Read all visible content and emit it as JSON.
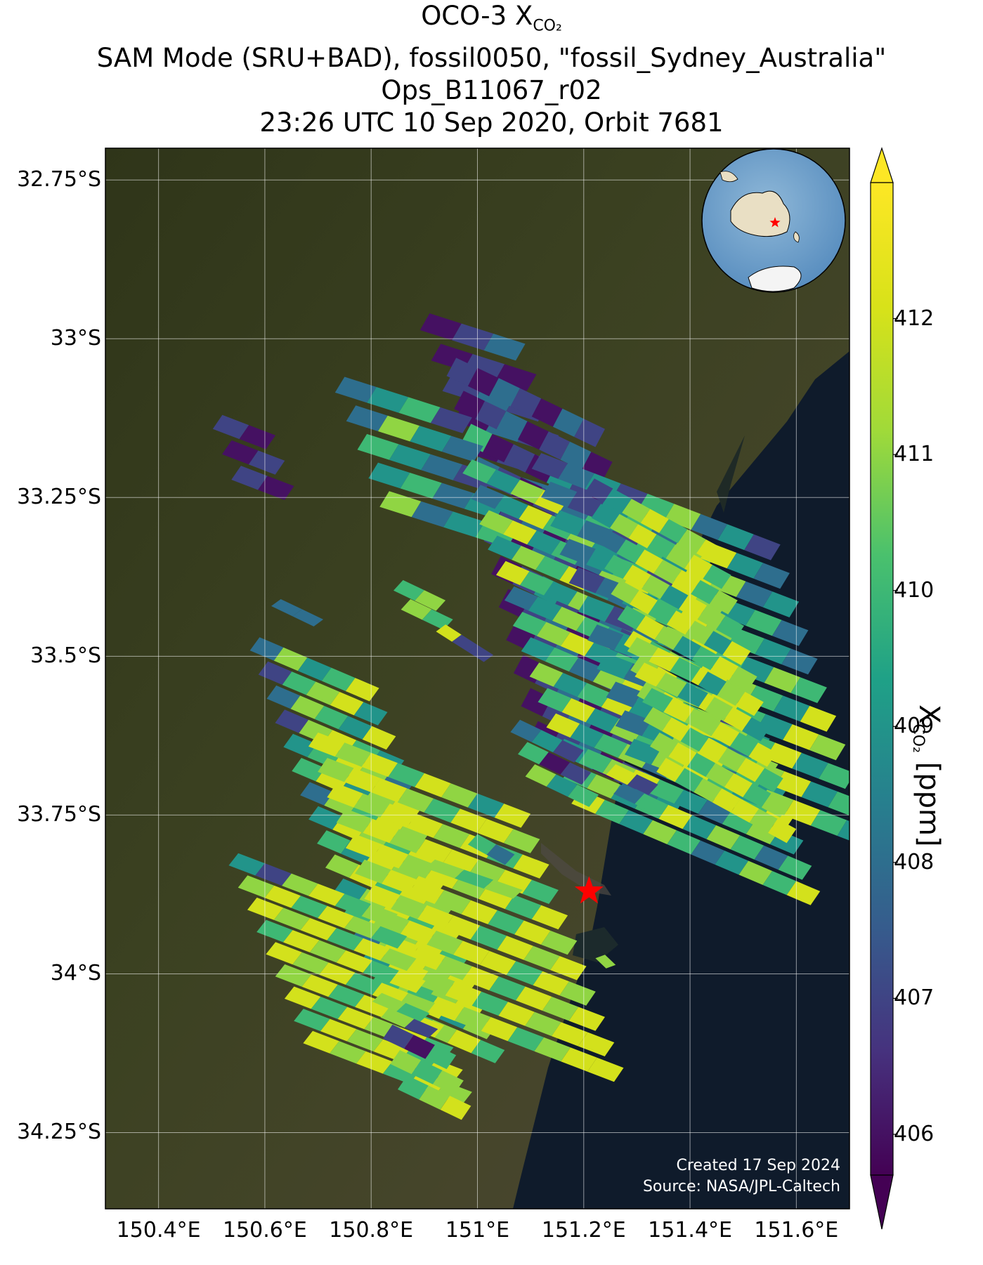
{
  "title": {
    "line1_main": "OCO-3 X",
    "line1_sub": "CO₂",
    "line2": "SAM Mode (SRU+BAD), fossil0050, \"fossil_Sydney_Australia\"",
    "line3": "Ops_B11067_r02",
    "line4": "23:26 UTC 10 Sep 2020, Orbit 7681"
  },
  "map": {
    "lat_labels": [
      "32.75°S",
      "33°S",
      "33.25°S",
      "33.5°S",
      "33.75°S",
      "34°S",
      "34.25°S"
    ],
    "lon_labels": [
      "150.4°E",
      "150.6°E",
      "150.8°E",
      "151°E",
      "151.2°E",
      "151.4°E",
      "151.6°E"
    ],
    "target_marker": {
      "lat": -33.87,
      "lon": 151.21,
      "symbol": "red-star"
    },
    "inset": {
      "description_icon": "globe-inset-icon",
      "marker": "red-star"
    },
    "colors": {
      "land": "#3a3f22",
      "ocean": "#0f1b2b",
      "grid": "#ffffff",
      "target": "#ff0000"
    },
    "credit_line1": "Created 17 Sep 2024",
    "credit_line2": "Source: NASA/JPL-Caltech"
  },
  "colorbar": {
    "ticks": [
      "406",
      "407",
      "408",
      "409",
      "410",
      "411",
      "412"
    ],
    "label_main": "X",
    "label_sub": "CO₂",
    "label_unit": " [ppm]",
    "colormap": "viridis",
    "range": [
      405.7,
      413
    ]
  },
  "chart_data": {
    "type": "heatmap",
    "variable": "XCO2 [ppm]",
    "colormap": "viridis",
    "crange": [
      405.7,
      413
    ],
    "extent": {
      "lon": [
        150.3,
        151.7
      ],
      "lat": [
        -34.37,
        -32.7
      ]
    },
    "swaths": [
      {
        "lon0": 150.91,
        "lat0": -32.96,
        "dlon": 0.06,
        "dlat": -0.048,
        "across_lon": 0.018,
        "across_lat": 0.016,
        "rows": 8,
        "cols": 3,
        "vals": [
          406,
          407,
          408,
          406,
          407,
          406,
          407,
          408,
          407,
          406,
          408,
          407,
          406,
          407,
          408,
          407,
          408,
          406,
          407,
          406,
          407,
          406,
          407,
          408
        ]
      },
      {
        "lon0": 150.96,
        "lat0": -33.03,
        "dlon": 0.04,
        "dlat": -0.052,
        "across_lon": 0.018,
        "across_lat": 0.016,
        "rows": 12,
        "cols": 7,
        "vals": [
          407,
          406,
          408,
          407,
          406,
          408,
          407,
          406,
          407,
          408,
          406,
          407,
          408,
          406,
          410,
          406,
          407,
          406,
          409,
          407,
          406,
          408,
          407,
          406,
          407,
          408,
          406,
          407,
          406,
          407,
          408,
          406,
          407,
          409,
          408,
          407,
          406,
          408,
          407,
          406,
          407,
          408,
          406,
          407,
          409,
          407,
          406,
          408,
          407,
          406,
          407,
          408,
          406,
          412,
          407,
          409,
          406,
          407,
          408,
          406,
          407,
          408,
          409,
          406,
          407,
          408,
          406,
          407,
          409,
          408,
          406,
          407,
          408,
          406,
          407,
          408,
          409,
          406,
          407,
          408,
          406,
          407,
          408,
          409
        ]
      },
      {
        "lon0": 150.52,
        "lat0": -33.12,
        "dlon": 0.05,
        "dlat": -0.04,
        "across_lon": 0.018,
        "across_lat": 0.016,
        "rows": 3,
        "cols": 2,
        "vals": [
          407,
          406,
          406,
          407,
          407,
          406
        ]
      },
      {
        "lon0": 150.75,
        "lat0": -33.06,
        "dlon": 0.06,
        "dlat": -0.045,
        "across_lon": 0.018,
        "across_lat": 0.016,
        "rows": 5,
        "cols": 4,
        "vals": [
          408,
          409,
          410,
          407,
          408,
          411,
          409,
          408,
          410,
          409,
          408,
          407,
          409,
          410,
          408,
          409,
          411,
          408,
          409,
          410
        ]
      },
      {
        "lon0": 150.99,
        "lat0": -33.19,
        "dlon": 0.045,
        "dlat": -0.04,
        "across_lon": 0.018,
        "across_lat": 0.016,
        "rows": 14,
        "cols": 10,
        "vals": [
          410,
          409,
          411,
          412,
          408,
          410,
          409,
          411,
          407,
          410,
          408,
          409,
          412,
          410,
          411,
          409,
          408,
          410,
          411,
          407,
          411,
          412,
          409,
          410,
          408,
          411,
          412,
          410,
          409,
          408,
          409,
          411,
          410,
          412,
          409,
          408,
          411,
          410,
          407,
          409,
          412,
          410,
          409,
          411,
          412,
          410,
          409,
          408,
          411,
          410,
          408,
          409,
          411,
          410,
          409,
          412,
          410,
          411,
          409,
          408,
          410,
          411,
          412,
          409,
          410,
          411,
          408,
          409,
          410,
          412,
          409,
          410,
          408,
          411,
          412,
          409,
          410,
          411,
          407,
          409,
          411,
          409,
          410,
          412,
          409,
          411,
          410,
          409,
          408,
          411,
          410,
          412,
          409,
          411,
          410,
          409,
          411,
          408,
          410,
          409,
          412,
          409,
          410,
          411,
          408,
          410,
          409,
          411,
          410,
          412,
          409,
          410,
          411,
          412,
          410,
          409,
          408,
          410,
          411,
          409,
          410,
          411,
          409,
          410,
          412,
          409,
          411,
          410,
          408,
          410,
          412,
          410,
          409,
          411,
          410,
          408,
          409,
          411,
          410,
          412
        ]
      },
      {
        "lon0": 151.12,
        "lat0": -33.18,
        "dlon": 0.05,
        "dlat": -0.045,
        "across_lon": 0.018,
        "across_lat": 0.016,
        "rows": 11,
        "cols": 9,
        "vals": [
          407,
          408,
          409,
          407,
          410,
          411,
          408,
          409,
          407,
          408,
          407,
          409,
          410,
          408,
          411,
          412,
          409,
          408,
          409,
          408,
          407,
          410,
          409,
          412,
          411,
          408,
          409,
          408,
          409,
          410,
          407,
          412,
          411,
          409,
          410,
          408,
          407,
          408,
          409,
          410,
          412,
          411,
          410,
          409,
          408,
          409,
          407,
          408,
          411,
          412,
          410,
          409,
          411,
          410,
          408,
          409,
          407,
          410,
          412,
          411,
          410,
          409,
          412,
          409,
          408,
          410,
          411,
          412,
          410,
          409,
          412,
          411,
          408,
          409,
          410,
          412,
          411,
          410,
          412,
          409,
          410,
          408,
          409,
          411,
          412,
          410,
          411,
          412,
          409,
          410,
          409,
          411,
          412,
          410,
          409,
          411,
          412,
          410,
          409
        ]
      },
      {
        "lon0": 151.22,
        "lat0": -33.22,
        "dlon": 0.035,
        "dlat": -0.04,
        "across_lon": 0.018,
        "across_lat": 0.016,
        "rows": 12,
        "cols": 7,
        "vals": [
          407,
          409,
          411,
          412,
          410,
          411,
          412,
          409,
          411,
          412,
          410,
          411,
          412,
          410,
          408,
          410,
          412,
          411,
          412,
          410,
          411,
          410,
          412,
          411,
          409,
          412,
          411,
          410,
          411,
          412,
          410,
          412,
          411,
          409,
          412,
          410,
          412,
          411,
          409,
          410,
          412,
          411,
          412,
          410,
          411,
          412,
          409,
          411,
          412,
          411,
          412,
          410,
          412,
          411,
          412,
          409,
          411,
          412,
          410,
          411,
          412,
          410,
          412,
          411,
          412,
          410,
          412,
          411,
          412,
          410,
          411,
          412,
          410,
          411,
          412,
          410,
          411,
          412,
          410,
          411,
          412,
          412,
          411,
          412
        ]
      },
      {
        "lon0": 150.63,
        "lat0": -33.41,
        "dlon": 0.04,
        "dlat": -0.02,
        "across_lon": 0.018,
        "across_lat": 0.016,
        "rows": 1,
        "cols": 2,
        "vals": [
          408,
          408
        ]
      },
      {
        "lon0": 150.86,
        "lat0": -33.38,
        "dlon": 0.04,
        "dlat": -0.03,
        "across_lon": 0.018,
        "across_lat": 0.016,
        "rows": 2,
        "cols": 2,
        "vals": [
          410,
          411,
          411,
          410
        ]
      },
      {
        "lon0": 150.94,
        "lat0": -33.45,
        "dlon": 0.03,
        "dlat": -0.02,
        "across_lon": 0.018,
        "across_lat": 0.016,
        "rows": 1,
        "cols": 3,
        "vals": [
          412,
          407,
          407
        ]
      },
      {
        "lon0": 151.3,
        "lat0": -33.47,
        "dlon": 0.04,
        "dlat": -0.04,
        "across_lon": 0.018,
        "across_lat": 0.016,
        "rows": 3,
        "cols": 3,
        "vals": [
          411,
          412,
          410,
          412,
          411,
          409,
          410,
          412,
          411
        ]
      },
      {
        "lon0": 151.08,
        "lat0": -33.6,
        "dlon": 0.04,
        "dlat": -0.035,
        "across_lon": 0.018,
        "across_lat": 0.016,
        "rows": 3,
        "cols": 3,
        "vals": [
          408,
          409,
          407,
          410,
          406,
          407,
          411,
          409,
          410
        ]
      },
      {
        "lon0": 151.26,
        "lat0": -33.67,
        "dlon": 0.04,
        "dlat": -0.03,
        "across_lon": 0.018,
        "across_lat": 0.016,
        "rows": 2,
        "cols": 2,
        "vals": [
          412,
          407,
          408,
          410
        ]
      },
      {
        "lon0": 150.59,
        "lat0": -33.47,
        "dlon": 0.045,
        "dlat": -0.038,
        "across_lon": 0.018,
        "across_lat": 0.016,
        "rows": 16,
        "cols": 5,
        "vals": [
          408,
          411,
          409,
          410,
          412,
          407,
          410,
          411,
          412,
          409,
          408,
          411,
          410,
          409,
          412,
          407,
          411,
          412,
          410,
          409,
          409,
          410,
          412,
          411,
          408,
          410,
          412,
          409,
          411,
          412,
          408,
          411,
          410,
          412,
          411,
          409,
          412,
          411,
          410,
          412,
          410,
          409,
          412,
          411,
          412,
          411,
          412,
          410,
          412,
          411,
          409,
          411,
          412,
          410,
          412,
          410,
          412,
          411,
          412,
          410,
          408,
          411,
          412,
          411,
          412,
          409,
          412,
          410,
          411,
          412,
          410,
          411,
          412,
          409,
          411,
          412,
          410,
          411,
          412,
          410
        ]
      },
      {
        "lon0": 150.7,
        "lat0": -33.62,
        "dlon": 0.05,
        "dlat": -0.04,
        "across_lon": 0.018,
        "across_lat": 0.016,
        "rows": 11,
        "cols": 8,
        "vals": [
          412,
          411,
          412,
          410,
          412,
          411,
          409,
          412,
          411,
          412,
          412,
          411,
          410,
          412,
          412,
          411,
          412,
          411,
          412,
          412,
          411,
          412,
          410,
          412,
          411,
          412,
          411,
          412,
          412,
          411,
          412,
          410,
          412,
          412,
          411,
          412,
          411,
          412,
          410,
          412,
          411,
          412,
          412,
          411,
          412,
          410,
          412,
          411,
          412,
          411,
          412,
          412,
          410,
          412,
          411,
          412,
          411,
          412,
          411,
          412,
          412,
          410,
          412,
          411,
          412,
          412,
          411,
          412,
          410,
          412,
          411,
          412,
          412,
          411,
          412,
          410,
          412,
          411,
          412,
          412,
          410,
          412,
          411,
          412,
          410,
          411,
          412,
          412
        ]
      },
      {
        "lon0": 150.55,
        "lat0": -33.81,
        "dlon": 0.05,
        "dlat": -0.035,
        "across_lon": 0.018,
        "across_lat": 0.016,
        "rows": 9,
        "cols": 6,
        "vals": [
          409,
          407,
          411,
          412,
          410,
          411,
          411,
          412,
          410,
          412,
          411,
          410,
          412,
          411,
          412,
          410,
          412,
          411,
          410,
          412,
          411,
          412,
          410,
          412,
          412,
          411,
          412,
          410,
          412,
          411,
          411,
          412,
          410,
          412,
          411,
          412,
          412,
          410,
          412,
          411,
          412,
          410,
          410,
          412,
          411,
          412,
          410,
          412,
          412,
          411,
          412,
          410,
          412,
          411
        ]
      },
      {
        "lon0": 150.92,
        "lat0": -33.82,
        "dlon": 0.055,
        "dlat": -0.025,
        "across_lon": 0.018,
        "across_lat": 0.016,
        "rows": 1,
        "cols": 3,
        "vals": [
          411,
          410,
          411
        ]
      },
      {
        "lon0": 151.0,
        "lat0": -33.78,
        "dlon": 0.035,
        "dlat": -0.03,
        "across_lon": 0.018,
        "across_lat": 0.016,
        "rows": 1,
        "cols": 2,
        "vals": [
          410,
          408
        ]
      },
      {
        "lon0": 150.82,
        "lat0": -34.03,
        "dlon": 0.045,
        "dlat": -0.025,
        "across_lon": 0.018,
        "across_lat": 0.016,
        "rows": 2,
        "cols": 2,
        "vals": [
          411,
          410,
          411,
          407
        ]
      },
      {
        "lon0": 150.84,
        "lat0": -34.08,
        "dlon": 0.04,
        "dlat": -0.04,
        "across_lon": 0.018,
        "across_lat": 0.016,
        "rows": 3,
        "cols": 3,
        "vals": [
          407,
          406,
          410,
          411,
          410,
          411,
          410,
          411,
          412
        ]
      },
      {
        "lon0": 151.24,
        "lat0": -33.97,
        "dlon": 0.02,
        "dlat": -0.01,
        "across_lon": 0.018,
        "across_lat": 0.016,
        "rows": 1,
        "cols": 1,
        "vals": [
          411
        ]
      }
    ]
  }
}
